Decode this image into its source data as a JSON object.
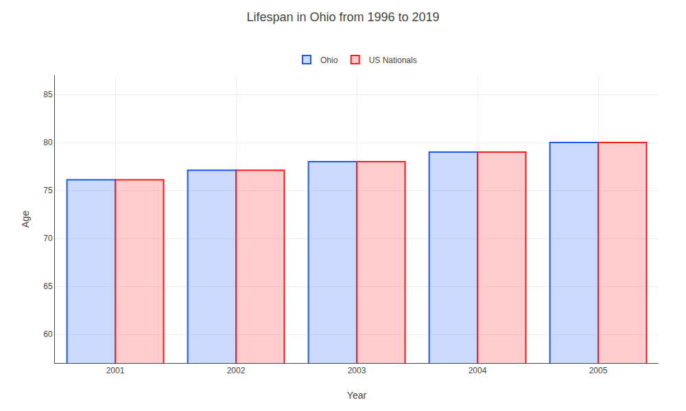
{
  "chart_data": {
    "type": "bar",
    "title": "Lifespan in Ohio from 1996 to 2019",
    "xlabel": "Year",
    "ylabel": "Age",
    "categories": [
      "2001",
      "2002",
      "2003",
      "2004",
      "2005"
    ],
    "series": [
      {
        "name": "Ohio",
        "color": "#1a56ff",
        "values": [
          76.1,
          77.1,
          78.0,
          79.0,
          80.0
        ]
      },
      {
        "name": "US Nationals",
        "color": "#ff1a1a",
        "values": [
          76.1,
          77.1,
          78.0,
          79.0,
          80.0
        ]
      }
    ],
    "ylim": [
      57,
      87
    ],
    "yticks": [
      60,
      65,
      70,
      75,
      80,
      85
    ],
    "grid": true,
    "legend": "upper center"
  }
}
